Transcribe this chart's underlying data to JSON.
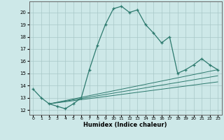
{
  "xlabel": "Humidex (Indice chaleur)",
  "x_main": [
    0,
    1,
    2,
    3,
    4,
    5,
    6,
    7,
    8,
    9,
    10,
    11,
    12,
    13,
    14,
    15,
    16,
    17,
    18,
    19,
    20,
    21,
    22,
    23
  ],
  "y_main": [
    13.7,
    13.0,
    12.5,
    12.3,
    12.1,
    12.5,
    13.0,
    15.3,
    17.3,
    19.0,
    20.3,
    20.5,
    20.0,
    20.2,
    19.0,
    18.3,
    17.5,
    18.0,
    15.0,
    15.3,
    15.7,
    16.2,
    15.7,
    15.3
  ],
  "line_color": "#2d7a6e",
  "bg_color": "#cde8e8",
  "grid_color": "#a8c8c8",
  "xlim": [
    -0.5,
    23.5
  ],
  "ylim": [
    11.6,
    20.9
  ],
  "yticks": [
    12,
    13,
    14,
    15,
    16,
    17,
    18,
    19,
    20
  ],
  "xticks": [
    0,
    1,
    2,
    3,
    4,
    5,
    6,
    7,
    8,
    9,
    10,
    11,
    12,
    13,
    14,
    15,
    16,
    17,
    18,
    19,
    20,
    21,
    22,
    23
  ],
  "line1_x": [
    2,
    23
  ],
  "line1_y": [
    12.5,
    15.3
  ],
  "line2_x": [
    2,
    23
  ],
  "line2_y": [
    12.5,
    14.8
  ],
  "line3_x": [
    2,
    23
  ],
  "line3_y": [
    12.5,
    14.3
  ]
}
